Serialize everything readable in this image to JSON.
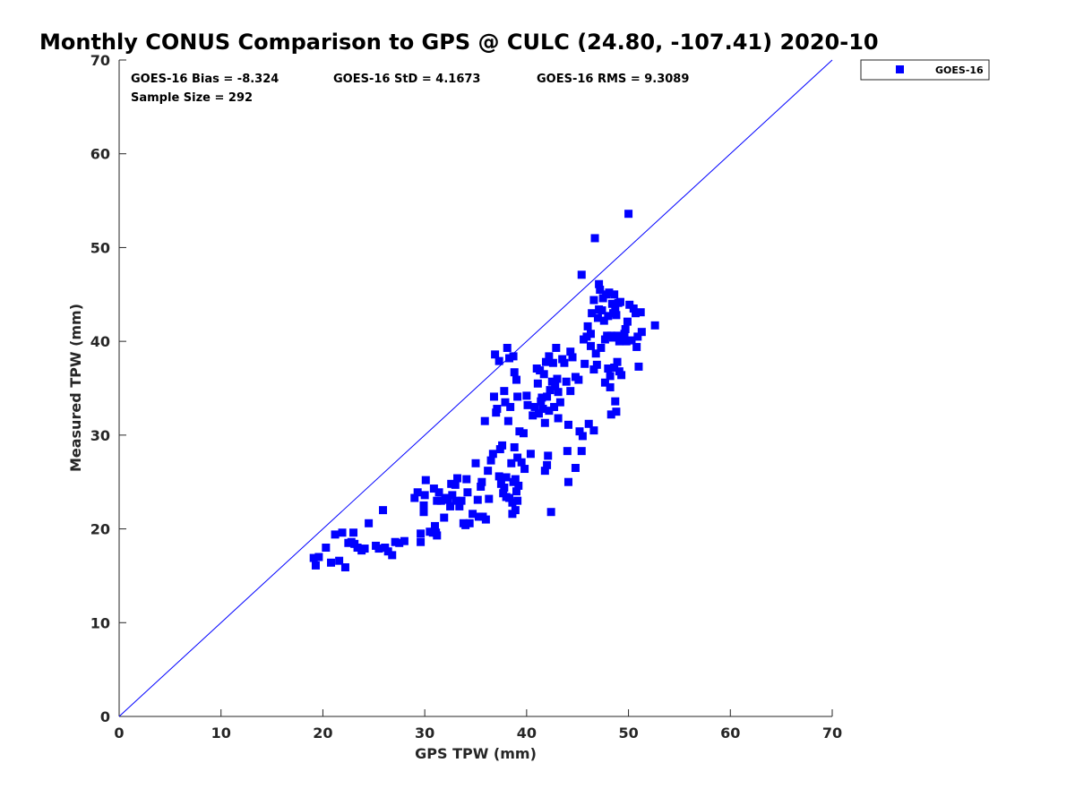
{
  "chart_data": {
    "type": "scatter",
    "title": "Monthly CONUS Comparison to GPS @ CULC (24.80, -107.41) 2020-10",
    "xlabel": "GPS TPW (mm)",
    "ylabel": "Measured TPW (mm)",
    "xlim": [
      0,
      70
    ],
    "ylim": [
      0,
      70
    ],
    "xticks": [
      0,
      10,
      20,
      30,
      40,
      50,
      60,
      70
    ],
    "yticks": [
      0,
      10,
      20,
      30,
      40,
      50,
      60,
      70
    ],
    "grid": false,
    "legend_position": "top-right",
    "reference_line": {
      "x": [
        0,
        70
      ],
      "y": [
        0,
        70
      ],
      "color": "#0000ff"
    },
    "stats": {
      "bias": "GOES-16 Bias = -8.324",
      "std": "GOES-16 StD = 4.1673",
      "rms": "GOES-16 RMS = 9.3089",
      "sample": "Sample Size = 292"
    },
    "series": [
      {
        "name": "GOES-16",
        "color": "#0000ff",
        "marker": "square",
        "points": [
          [
            19.1,
            16.9
          ],
          [
            19.3,
            16.1
          ],
          [
            19.6,
            17.0
          ],
          [
            20.3,
            18.0
          ],
          [
            20.8,
            16.4
          ],
          [
            21.2,
            19.4
          ],
          [
            21.6,
            16.6
          ],
          [
            21.9,
            19.6
          ],
          [
            22.2,
            15.9
          ],
          [
            22.5,
            18.5
          ],
          [
            22.8,
            18.6
          ],
          [
            23.0,
            19.6
          ],
          [
            23.1,
            18.4
          ],
          [
            23.4,
            18.0
          ],
          [
            23.8,
            17.7
          ],
          [
            24.1,
            17.9
          ],
          [
            24.5,
            20.6
          ],
          [
            25.2,
            18.2
          ],
          [
            25.5,
            17.9
          ],
          [
            25.9,
            22.0
          ],
          [
            26.1,
            18.0
          ],
          [
            26.4,
            17.6
          ],
          [
            26.8,
            17.2
          ],
          [
            27.1,
            18.6
          ],
          [
            27.5,
            18.5
          ],
          [
            28.0,
            18.7
          ],
          [
            29.0,
            23.3
          ],
          [
            29.3,
            23.9
          ],
          [
            29.6,
            19.5
          ],
          [
            29.6,
            18.6
          ],
          [
            29.9,
            21.8
          ],
          [
            29.9,
            22.5
          ],
          [
            30.0,
            23.6
          ],
          [
            30.1,
            25.2
          ],
          [
            30.5,
            19.7
          ],
          [
            30.8,
            19.6
          ],
          [
            30.9,
            24.3
          ],
          [
            31.0,
            20.3
          ],
          [
            31.1,
            19.6
          ],
          [
            31.2,
            19.3
          ],
          [
            31.2,
            23.0
          ],
          [
            31.4,
            23.9
          ],
          [
            31.6,
            23.0
          ],
          [
            31.9,
            21.2
          ],
          [
            32.0,
            23.3
          ],
          [
            32.3,
            23.1
          ],
          [
            32.5,
            22.4
          ],
          [
            32.6,
            24.8
          ],
          [
            32.7,
            23.6
          ],
          [
            33.0,
            24.7
          ],
          [
            33.1,
            23.0
          ],
          [
            33.2,
            25.4
          ],
          [
            33.4,
            22.4
          ],
          [
            33.6,
            23.0
          ],
          [
            33.8,
            20.6
          ],
          [
            34.0,
            20.4
          ],
          [
            34.1,
            25.3
          ],
          [
            34.2,
            23.9
          ],
          [
            34.4,
            20.6
          ],
          [
            34.7,
            21.6
          ],
          [
            35.0,
            27.0
          ],
          [
            35.2,
            23.1
          ],
          [
            35.3,
            21.3
          ],
          [
            35.5,
            24.5
          ],
          [
            35.6,
            25.0
          ],
          [
            35.7,
            21.3
          ],
          [
            35.9,
            31.5
          ],
          [
            36.0,
            21.0
          ],
          [
            36.2,
            26.2
          ],
          [
            36.3,
            23.2
          ],
          [
            36.5,
            27.3
          ],
          [
            36.7,
            28.0
          ],
          [
            36.8,
            34.1
          ],
          [
            36.9,
            38.6
          ],
          [
            37.0,
            32.4
          ],
          [
            37.1,
            32.8
          ],
          [
            37.3,
            37.9
          ],
          [
            37.3,
            25.6
          ],
          [
            37.4,
            28.5
          ],
          [
            37.5,
            24.8
          ],
          [
            37.6,
            28.9
          ],
          [
            37.7,
            23.8
          ],
          [
            37.8,
            34.7
          ],
          [
            37.8,
            24.4
          ],
          [
            37.9,
            33.5
          ],
          [
            38.0,
            25.5
          ],
          [
            38.0,
            23.4
          ],
          [
            38.1,
            39.3
          ],
          [
            38.2,
            31.5
          ],
          [
            38.3,
            38.2
          ],
          [
            38.3,
            23.3
          ],
          [
            38.4,
            33.0
          ],
          [
            38.5,
            27.0
          ],
          [
            38.6,
            22.8
          ],
          [
            38.6,
            21.6
          ],
          [
            38.7,
            25.0
          ],
          [
            38.7,
            38.4
          ],
          [
            38.8,
            36.7
          ],
          [
            38.8,
            28.7
          ],
          [
            38.9,
            25.3
          ],
          [
            38.9,
            22.0
          ],
          [
            39.0,
            35.9
          ],
          [
            39.0,
            24.0
          ],
          [
            39.1,
            34.1
          ],
          [
            39.1,
            27.6
          ],
          [
            39.1,
            23.0
          ],
          [
            39.2,
            24.6
          ],
          [
            39.3,
            30.4
          ],
          [
            39.5,
            27.1
          ],
          [
            39.7,
            30.2
          ],
          [
            39.8,
            26.4
          ],
          [
            40.0,
            34.2
          ],
          [
            40.1,
            33.2
          ],
          [
            40.4,
            28.0
          ],
          [
            40.6,
            32.1
          ],
          [
            40.8,
            33.0
          ],
          [
            41.0,
            37.1
          ],
          [
            41.1,
            35.5
          ],
          [
            41.2,
            32.3
          ],
          [
            41.3,
            36.9
          ],
          [
            41.4,
            33.6
          ],
          [
            41.5,
            34.0
          ],
          [
            41.6,
            32.8
          ],
          [
            41.7,
            36.5
          ],
          [
            41.8,
            26.2
          ],
          [
            41.8,
            31.3
          ],
          [
            41.9,
            37.8
          ],
          [
            42.0,
            34.1
          ],
          [
            42.0,
            26.8
          ],
          [
            42.1,
            27.8
          ],
          [
            42.2,
            38.4
          ],
          [
            42.2,
            32.6
          ],
          [
            42.3,
            34.8
          ],
          [
            42.4,
            21.8
          ],
          [
            42.5,
            35.7
          ],
          [
            42.6,
            37.7
          ],
          [
            42.7,
            33.0
          ],
          [
            42.8,
            35.2
          ],
          [
            42.9,
            39.3
          ],
          [
            43.0,
            36.0
          ],
          [
            43.1,
            34.6
          ],
          [
            43.1,
            31.8
          ],
          [
            43.3,
            33.5
          ],
          [
            43.5,
            38.1
          ],
          [
            43.7,
            37.7
          ],
          [
            43.9,
            35.7
          ],
          [
            44.0,
            28.3
          ],
          [
            44.1,
            25.0
          ],
          [
            44.1,
            31.1
          ],
          [
            44.3,
            38.9
          ],
          [
            44.3,
            34.7
          ],
          [
            44.5,
            38.3
          ],
          [
            44.8,
            36.2
          ],
          [
            44.8,
            26.5
          ],
          [
            45.1,
            35.9
          ],
          [
            45.2,
            30.4
          ],
          [
            45.4,
            28.3
          ],
          [
            45.4,
            47.1
          ],
          [
            45.5,
            29.9
          ],
          [
            45.6,
            40.2
          ],
          [
            45.7,
            37.6
          ],
          [
            45.9,
            40.5
          ],
          [
            46.0,
            41.6
          ],
          [
            46.1,
            31.2
          ],
          [
            46.3,
            40.8
          ],
          [
            46.3,
            39.5
          ],
          [
            46.4,
            43.0
          ],
          [
            46.6,
            44.4
          ],
          [
            46.6,
            37.0
          ],
          [
            46.6,
            30.5
          ],
          [
            46.7,
            51.0
          ],
          [
            46.8,
            38.7
          ],
          [
            46.9,
            37.5
          ],
          [
            47.0,
            42.5
          ],
          [
            47.1,
            43.4
          ],
          [
            47.1,
            46.1
          ],
          [
            47.2,
            45.5
          ],
          [
            47.3,
            39.3
          ],
          [
            47.4,
            43.3
          ],
          [
            47.5,
            44.6
          ],
          [
            47.6,
            42.2
          ],
          [
            47.7,
            40.2
          ],
          [
            47.7,
            35.6
          ],
          [
            47.8,
            45.0
          ],
          [
            47.9,
            40.6
          ],
          [
            48.0,
            42.7
          ],
          [
            48.0,
            37.1
          ],
          [
            48.1,
            45.2
          ],
          [
            48.2,
            36.3
          ],
          [
            48.2,
            35.1
          ],
          [
            48.3,
            40.6
          ],
          [
            48.3,
            32.2
          ],
          [
            48.4,
            44.0
          ],
          [
            48.5,
            43.0
          ],
          [
            48.5,
            40.4
          ],
          [
            48.6,
            45.0
          ],
          [
            48.6,
            37.2
          ],
          [
            48.7,
            43.4
          ],
          [
            48.7,
            33.6
          ],
          [
            48.8,
            42.8
          ],
          [
            48.8,
            32.5
          ],
          [
            48.9,
            40.6
          ],
          [
            48.9,
            37.8
          ],
          [
            49.0,
            44.1
          ],
          [
            49.1,
            40.0
          ],
          [
            49.1,
            36.8
          ],
          [
            49.2,
            44.2
          ],
          [
            49.3,
            36.4
          ],
          [
            49.4,
            40.5
          ],
          [
            49.6,
            40.8
          ],
          [
            49.7,
            41.3
          ],
          [
            49.8,
            40.0
          ],
          [
            49.9,
            42.1
          ],
          [
            50.0,
            53.6
          ],
          [
            50.1,
            43.9
          ],
          [
            50.3,
            40.1
          ],
          [
            50.5,
            43.5
          ],
          [
            50.7,
            43.0
          ],
          [
            50.8,
            39.4
          ],
          [
            50.9,
            40.5
          ],
          [
            51.0,
            37.3
          ],
          [
            51.2,
            43.1
          ],
          [
            51.3,
            41.0
          ],
          [
            52.6,
            41.7
          ]
        ]
      }
    ]
  }
}
